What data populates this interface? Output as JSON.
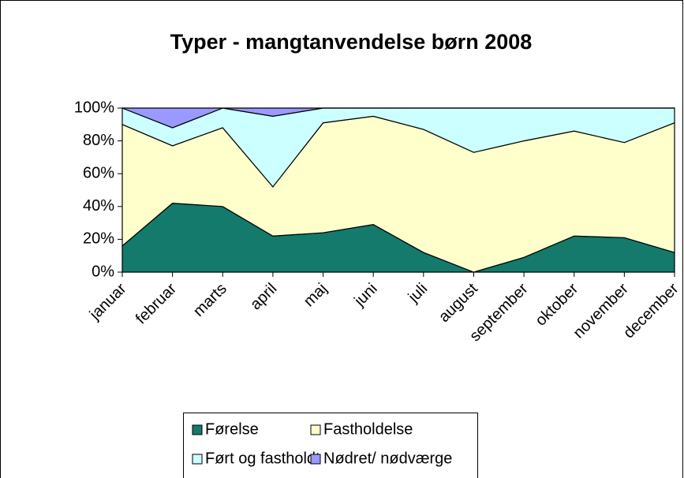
{
  "chart_data": {
    "type": "stacked_area",
    "title": "Typer - mangtanvendelse børn 2008",
    "categories": [
      "januar",
      "februar",
      "marts",
      "april",
      "maj",
      "juni",
      "juli",
      "august",
      "september",
      "oktober",
      "november",
      "december"
    ],
    "series": [
      {
        "name": "Førelse",
        "color": "#137a6c",
        "values": [
          16,
          42,
          40,
          22,
          24,
          29,
          12,
          0,
          9,
          22,
          21,
          12
        ]
      },
      {
        "name": "Fastholdelse",
        "color": "#ffffcc",
        "values": [
          74,
          35,
          48,
          30,
          67,
          66,
          75,
          73,
          71,
          64,
          58,
          79
        ]
      },
      {
        "name": "Ført og fastholdt",
        "color": "#ccffff",
        "values": [
          10,
          11,
          12,
          43,
          9,
          5,
          13,
          27,
          20,
          14,
          21,
          9
        ]
      },
      {
        "name": "Nødret/ nødværge",
        "color": "#9999ff",
        "values": [
          0,
          12,
          0,
          5,
          0,
          0,
          0,
          0,
          0,
          0,
          0,
          0
        ]
      }
    ],
    "ylim": [
      0,
      100
    ],
    "yticks": [
      {
        "value": 0,
        "label": "0%"
      },
      {
        "value": 20,
        "label": "20%"
      },
      {
        "value": 40,
        "label": "40%"
      },
      {
        "value": 60,
        "label": "60%"
      },
      {
        "value": 80,
        "label": "80%"
      },
      {
        "value": 100,
        "label": "100%"
      }
    ],
    "legend": "bottom"
  }
}
